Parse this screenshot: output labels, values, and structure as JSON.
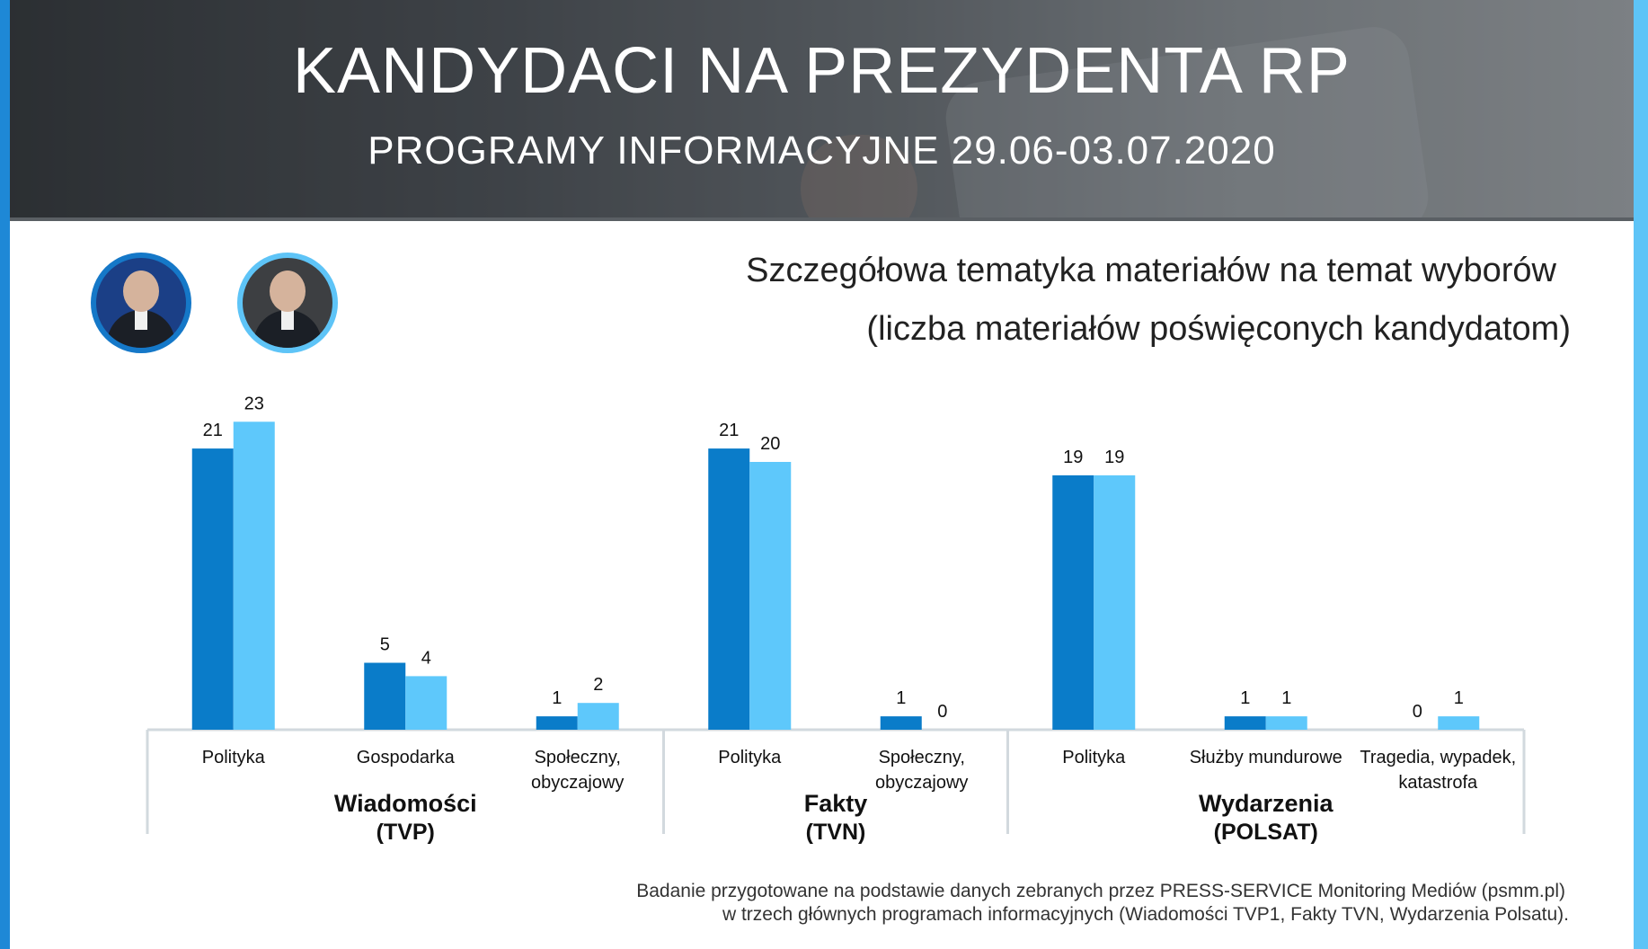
{
  "header": {
    "title": "KANDYDACI NA PREZYDENTA RP",
    "subtitle": "PROGRAMY INFORMACYJNE 29.06-03.07.2020"
  },
  "chart_title": {
    "line1": "Szczegółowa tematyka materiałów na temat wyborów",
    "line2": "(liczba materiałów  poświęconych kandydatom)"
  },
  "colors": {
    "candidate_1": "#0a7cc9",
    "candidate_2": "#5ec8fb",
    "axis": "#d2d9de",
    "text": "#111111"
  },
  "chart_data": {
    "type": "bar",
    "title": "Szczegółowa tematyka materiałów na temat wyborów (liczba materiałów poświęconych kandydatom)",
    "ylim": [
      0,
      23
    ],
    "grid": false,
    "legend": "none",
    "series_colors": [
      "#0a7cc9",
      "#5ec8fb"
    ],
    "groups": [
      {
        "name_line1": "Wiadomości",
        "name_line2": "(TVP)",
        "categories": [
          {
            "label": [
              "Polityka"
            ],
            "values": [
              21,
              23
            ]
          },
          {
            "label": [
              "Gospodarka"
            ],
            "values": [
              5,
              4
            ]
          },
          {
            "label": [
              "Społeczny,",
              "obyczajowy"
            ],
            "values": [
              1,
              2
            ]
          }
        ]
      },
      {
        "name_line1": "Fakty",
        "name_line2": "(TVN)",
        "categories": [
          {
            "label": [
              "Polityka"
            ],
            "values": [
              21,
              20
            ]
          },
          {
            "label": [
              "Społeczny,",
              "obyczajowy"
            ],
            "values": [
              1,
              0
            ]
          }
        ]
      },
      {
        "name_line1": "Wydarzenia",
        "name_line2": "(POLSAT)",
        "categories": [
          {
            "label": [
              "Polityka"
            ],
            "values": [
              19,
              19
            ]
          },
          {
            "label": [
              "Służby mundurowe"
            ],
            "values": [
              1,
              1
            ]
          },
          {
            "label": [
              "Tragedia, wypadek,",
              "katastrofa"
            ],
            "values": [
              0,
              1
            ]
          }
        ]
      }
    ]
  },
  "footer": {
    "line1": "Badanie przygotowane na podstawie danych zebranych przez PRESS-SERVICE Monitoring Mediów (psmm.pl)",
    "line2": "w trzech głównych programach informacyjnych (Wiadomości TVP1, Fakty TVN, Wydarzenia Polsatu)."
  }
}
